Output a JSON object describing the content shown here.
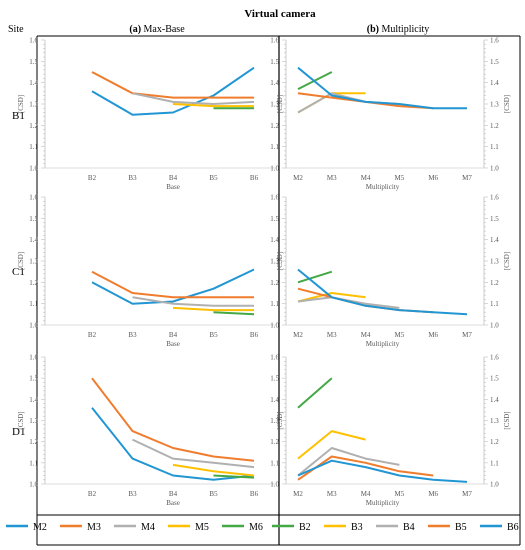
{
  "title": "Virtual camera",
  "site_header": "Site",
  "col_a": {
    "tag": "(a)",
    "label": "Max-Base"
  },
  "col_b": {
    "tag": "(b)",
    "label": "Multiplicity"
  },
  "colors": {
    "M2": "#2196d3",
    "M3": "#f07c2e",
    "M4": "#b0b0b0",
    "M5": "#ffc000",
    "M6": "#43a845",
    "B2": "#43a845",
    "B3": "#ffc000",
    "B4": "#b0b0b0",
    "B5": "#f07c2e",
    "B6": "#2196d3"
  },
  "legend_a": [
    "M2",
    "M3",
    "M4",
    "M5",
    "M6"
  ],
  "legend_b": [
    "B2",
    "B3",
    "B4",
    "B5",
    "B6"
  ],
  "chart_data": [
    {
      "type": "line",
      "site": "B1",
      "panel": "(a) Max-Base",
      "xlabel": "Base",
      "ylabel": "[CSD]",
      "categories": [
        "B2",
        "B3",
        "B4",
        "B5",
        "B6"
      ],
      "ylim": [
        1.0,
        1.6
      ],
      "yticks": [
        "1.0",
        "1.1",
        "1.2",
        "1.3",
        "1.4",
        "1.5",
        "1.6"
      ],
      "series": [
        {
          "name": "M2",
          "values": [
            1.36,
            1.25,
            1.26,
            1.34,
            1.47
          ]
        },
        {
          "name": "M3",
          "values": [
            1.45,
            1.35,
            1.33,
            1.33,
            1.33
          ]
        },
        {
          "name": "M4",
          "values": [
            null,
            1.35,
            1.31,
            1.3,
            1.31
          ]
        },
        {
          "name": "M5",
          "values": [
            null,
            null,
            1.3,
            1.29,
            1.29
          ]
        },
        {
          "name": "M6",
          "values": [
            null,
            null,
            null,
            1.28,
            1.28
          ]
        }
      ]
    },
    {
      "type": "line",
      "site": "B1",
      "panel": "(b) Multiplicity",
      "xlabel": "Multiplicity",
      "ylabel": "[CSD]",
      "categories": [
        "M2",
        "M3",
        "M4",
        "M5",
        "M6",
        "M7"
      ],
      "ylim": [
        1.0,
        1.6
      ],
      "yticks": [
        "1.0",
        "1.1",
        "1.2",
        "1.3",
        "1.4",
        "1.5",
        "1.6"
      ],
      "series": [
        {
          "name": "B2",
          "values": [
            1.37,
            1.45,
            null,
            null,
            null,
            null
          ]
        },
        {
          "name": "B3",
          "values": [
            1.26,
            1.35,
            1.35,
            null,
            null,
            null
          ]
        },
        {
          "name": "B4",
          "values": [
            1.26,
            1.35,
            1.31,
            1.3,
            null,
            null
          ]
        },
        {
          "name": "B5",
          "values": [
            1.35,
            1.33,
            1.31,
            1.29,
            1.28,
            null
          ]
        },
        {
          "name": "B6",
          "values": [
            1.47,
            1.34,
            1.31,
            1.3,
            1.28,
            1.28
          ]
        }
      ]
    },
    {
      "type": "line",
      "site": "C1",
      "panel": "(a) Max-Base",
      "xlabel": "Base",
      "ylabel": "[CSD]",
      "categories": [
        "B2",
        "B3",
        "B4",
        "B5",
        "B6"
      ],
      "ylim": [
        1.0,
        1.6
      ],
      "yticks": [
        "1.0",
        "1.1",
        "1.2",
        "1.3",
        "1.4",
        "1.5",
        "1.6"
      ],
      "series": [
        {
          "name": "M2",
          "values": [
            1.2,
            1.1,
            1.11,
            1.17,
            1.26
          ]
        },
        {
          "name": "M3",
          "values": [
            1.25,
            1.15,
            1.13,
            1.13,
            1.13
          ]
        },
        {
          "name": "M4",
          "values": [
            null,
            1.13,
            1.1,
            1.09,
            1.09
          ]
        },
        {
          "name": "M5",
          "values": [
            null,
            null,
            1.08,
            1.07,
            1.07
          ]
        },
        {
          "name": "M6",
          "values": [
            null,
            null,
            null,
            1.06,
            1.05
          ]
        }
      ]
    },
    {
      "type": "line",
      "site": "C1",
      "panel": "(b) Multiplicity",
      "xlabel": "Multiplicity",
      "ylabel": "[CSD]",
      "categories": [
        "M2",
        "M3",
        "M4",
        "M5",
        "M6",
        "M7"
      ],
      "ylim": [
        1.0,
        1.6
      ],
      "yticks": [
        "1.0",
        "1.1",
        "1.2",
        "1.3",
        "1.4",
        "1.5",
        "1.6"
      ],
      "series": [
        {
          "name": "B2",
          "values": [
            1.2,
            1.25,
            null,
            null,
            null,
            null
          ]
        },
        {
          "name": "B3",
          "values": [
            1.11,
            1.15,
            1.13,
            null,
            null,
            null
          ]
        },
        {
          "name": "B4",
          "values": [
            1.11,
            1.13,
            1.1,
            1.08,
            null,
            null
          ]
        },
        {
          "name": "B5",
          "values": [
            1.17,
            1.13,
            1.09,
            1.07,
            1.06,
            null
          ]
        },
        {
          "name": "B6",
          "values": [
            1.26,
            1.13,
            1.09,
            1.07,
            1.06,
            1.05
          ]
        }
      ]
    },
    {
      "type": "line",
      "site": "D1",
      "panel": "(a) Max-Base",
      "xlabel": "Base",
      "ylabel": "[CSD]",
      "categories": [
        "B2",
        "B3",
        "B4",
        "B5",
        "B6"
      ],
      "ylim": [
        1.0,
        1.6
      ],
      "yticks": [
        "1.0",
        "1.1",
        "1.2",
        "1.3",
        "1.4",
        "1.5",
        "1.6"
      ],
      "series": [
        {
          "name": "M2",
          "values": [
            1.36,
            1.12,
            1.04,
            1.02,
            1.04
          ]
        },
        {
          "name": "M3",
          "values": [
            1.5,
            1.25,
            1.17,
            1.13,
            1.11
          ]
        },
        {
          "name": "M4",
          "values": [
            null,
            1.21,
            1.12,
            1.1,
            1.08
          ]
        },
        {
          "name": "M5",
          "values": [
            null,
            null,
            1.09,
            1.06,
            1.04
          ]
        },
        {
          "name": "M6",
          "values": [
            null,
            null,
            null,
            1.04,
            1.03
          ]
        }
      ]
    },
    {
      "type": "line",
      "site": "D1",
      "panel": "(b) Multiplicity",
      "xlabel": "Multiplicity",
      "ylabel": "[CSD]",
      "categories": [
        "M2",
        "M3",
        "M4",
        "M5",
        "M6",
        "M7"
      ],
      "ylim": [
        1.0,
        1.6
      ],
      "yticks": [
        "1.0",
        "1.1",
        "1.2",
        "1.3",
        "1.4",
        "1.5",
        "1.6"
      ],
      "series": [
        {
          "name": "B2",
          "values": [
            1.36,
            1.5,
            null,
            null,
            null,
            null
          ]
        },
        {
          "name": "B3",
          "values": [
            1.12,
            1.25,
            1.21,
            null,
            null,
            null
          ]
        },
        {
          "name": "B4",
          "values": [
            1.04,
            1.17,
            1.12,
            1.09,
            null,
            null
          ]
        },
        {
          "name": "B5",
          "values": [
            1.02,
            1.13,
            1.1,
            1.06,
            1.04,
            null
          ]
        },
        {
          "name": "B6",
          "values": [
            1.04,
            1.11,
            1.08,
            1.04,
            1.02,
            1.01
          ]
        }
      ]
    }
  ]
}
